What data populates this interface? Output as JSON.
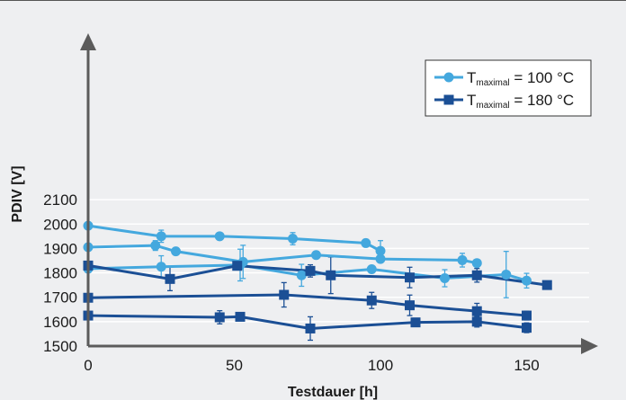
{
  "chart_data": {
    "type": "line",
    "title": "",
    "xlabel": "Testdauer [h]",
    "ylabel": "PDIV [V]",
    "xlim": [
      0,
      170
    ],
    "ylim": [
      1500,
      2150
    ],
    "xticks": [
      0,
      50,
      100,
      150
    ],
    "yticks": [
      1500,
      1600,
      1700,
      1800,
      1900,
      2000,
      2100
    ],
    "grid": "horizontal",
    "legend_position": "top-right",
    "legend": [
      {
        "prefix": "T",
        "sub": "maximal",
        "value": "= 100 °C",
        "marker": "circle",
        "color": "#44a8de"
      },
      {
        "prefix": "T",
        "sub": "maximal",
        "value": "= 180 °C",
        "marker": "square",
        "color": "#1b4f95"
      }
    ],
    "series": [
      {
        "group": 0,
        "color": "#44a8de",
        "marker": "circle",
        "points": [
          {
            "x": 0,
            "y": 1993,
            "err": 0
          },
          {
            "x": 25,
            "y": 1950,
            "err": 25
          },
          {
            "x": 45,
            "y": 1950,
            "err": 0
          },
          {
            "x": 70,
            "y": 1940,
            "err": 25
          },
          {
            "x": 95,
            "y": 1922,
            "err": 12
          },
          {
            "x": 100,
            "y": 1890,
            "err": 42
          }
        ]
      },
      {
        "group": 0,
        "color": "#44a8de",
        "marker": "circle",
        "points": [
          {
            "x": 0,
            "y": 1905,
            "err": 0
          },
          {
            "x": 23,
            "y": 1912,
            "err": 20
          },
          {
            "x": 30,
            "y": 1888,
            "err": 0
          },
          {
            "x": 53,
            "y": 1845,
            "err": 68
          },
          {
            "x": 78,
            "y": 1873,
            "err": 0
          },
          {
            "x": 100,
            "y": 1857,
            "err": 12
          },
          {
            "x": 128,
            "y": 1852,
            "err": 28
          },
          {
            "x": 133,
            "y": 1840,
            "err": 0
          }
        ]
      },
      {
        "group": 0,
        "color": "#44a8de",
        "marker": "circle",
        "points": [
          {
            "x": 0,
            "y": 1817,
            "err": 0
          },
          {
            "x": 25,
            "y": 1825,
            "err": 45
          },
          {
            "x": 52,
            "y": 1832,
            "err": 65
          },
          {
            "x": 73,
            "y": 1790,
            "err": 45
          },
          {
            "x": 97,
            "y": 1815,
            "err": 0
          },
          {
            "x": 122,
            "y": 1778,
            "err": 35
          },
          {
            "x": 143,
            "y": 1793,
            "err": 95
          },
          {
            "x": 150,
            "y": 1768,
            "err": 30
          }
        ]
      },
      {
        "group": 1,
        "color": "#1b4f95",
        "marker": "square",
        "points": [
          {
            "x": 0,
            "y": 1830,
            "err": 0
          },
          {
            "x": 28,
            "y": 1775,
            "err": 48
          },
          {
            "x": 51,
            "y": 1829,
            "err": 0
          },
          {
            "x": 76,
            "y": 1808,
            "err": 25
          },
          {
            "x": 83,
            "y": 1790,
            "err": 75
          },
          {
            "x": 110,
            "y": 1781,
            "err": 42
          },
          {
            "x": 133,
            "y": 1790,
            "err": 28
          },
          {
            "x": 157,
            "y": 1750,
            "err": 15
          }
        ]
      },
      {
        "group": 1,
        "color": "#1b4f95",
        "marker": "square",
        "points": [
          {
            "x": 0,
            "y": 1698,
            "err": 0
          },
          {
            "x": 67,
            "y": 1710,
            "err": 50
          },
          {
            "x": 97,
            "y": 1687,
            "err": 33
          },
          {
            "x": 110,
            "y": 1667,
            "err": 42
          },
          {
            "x": 133,
            "y": 1643,
            "err": 32
          },
          {
            "x": 150,
            "y": 1625,
            "err": 18
          }
        ]
      },
      {
        "group": 1,
        "color": "#1b4f95",
        "marker": "square",
        "points": [
          {
            "x": 0,
            "y": 1625,
            "err": 0
          },
          {
            "x": 45,
            "y": 1618,
            "err": 27
          },
          {
            "x": 52,
            "y": 1620,
            "err": 0
          },
          {
            "x": 76,
            "y": 1572,
            "err": 48
          },
          {
            "x": 112,
            "y": 1597,
            "err": 0
          },
          {
            "x": 133,
            "y": 1600,
            "err": 22
          },
          {
            "x": 150,
            "y": 1575,
            "err": 20
          }
        ]
      }
    ]
  }
}
